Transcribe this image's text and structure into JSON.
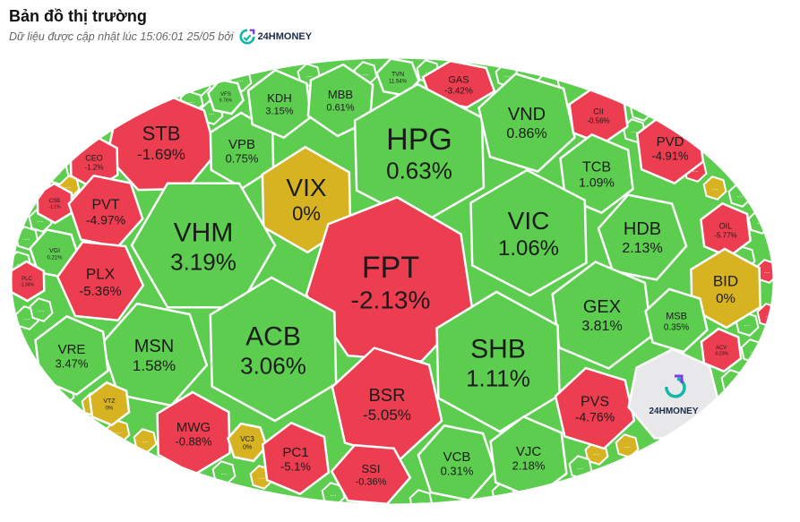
{
  "header": {
    "title": "Bản đồ thị trường",
    "subtitle": "Dữ liệu được cập nhật lúc 15:06:01 25/05 bởi",
    "brand": "24HMONEY"
  },
  "colors": {
    "up": "#5ccd4f",
    "down": "#ec3d51",
    "flat": "#d7b221",
    "brand_teal": "#14b8a6",
    "brand_purple": "#7c3aed",
    "border": "#ffffff"
  },
  "tiles": [
    {
      "ticker": "STB",
      "change": "-1.69%",
      "state": "down"
    },
    {
      "ticker": "VPB",
      "change": "0.75%",
      "state": "up"
    },
    {
      "ticker": "KDH",
      "change": "3.15%",
      "state": "up"
    },
    {
      "ticker": "MBB",
      "change": "0.61%",
      "state": "up"
    },
    {
      "ticker": "TVN",
      "change": "11.54%",
      "state": "up"
    },
    {
      "ticker": "GAS",
      "change": "-3.42%",
      "state": "down"
    },
    {
      "ticker": "VFS",
      "change": "6.76%",
      "state": "up"
    },
    {
      "ticker": "HPG",
      "change": "0.63%",
      "state": "up"
    },
    {
      "ticker": "VND",
      "change": "0.86%",
      "state": "up"
    },
    {
      "ticker": "CII",
      "change": "-0.56%",
      "state": "down"
    },
    {
      "ticker": "CEO",
      "change": "-1.2%",
      "state": "down"
    },
    {
      "ticker": "VIX",
      "change": "0%",
      "state": "flat"
    },
    {
      "ticker": "TCB",
      "change": "1.09%",
      "state": "up"
    },
    {
      "ticker": "PVD",
      "change": "-4.91%",
      "state": "down"
    },
    {
      "ticker": "CSB",
      "change": "-1.1%",
      "state": "down"
    },
    {
      "ticker": "PVT",
      "change": "-4.97%",
      "state": "down"
    },
    {
      "ticker": "VHM",
      "change": "3.19%",
      "state": "up"
    },
    {
      "ticker": "VIC",
      "change": "1.06%",
      "state": "up"
    },
    {
      "ticker": "HDB",
      "change": "2.13%",
      "state": "up"
    },
    {
      "ticker": "OIL",
      "change": "-5.77%",
      "state": "down"
    },
    {
      "ticker": "VGI",
      "change": "0.21%",
      "state": "up"
    },
    {
      "ticker": "FPT",
      "change": "-2.13%",
      "state": "down"
    },
    {
      "ticker": "PLX",
      "change": "-5.36%",
      "state": "down"
    },
    {
      "ticker": "BID",
      "change": "0%",
      "state": "flat"
    },
    {
      "ticker": "PLC",
      "change": "-1.36%",
      "state": "down"
    },
    {
      "ticker": "GEX",
      "change": "3.81%",
      "state": "up"
    },
    {
      "ticker": "MSB",
      "change": "0.35%",
      "state": "up"
    },
    {
      "ticker": "MSN",
      "change": "1.58%",
      "state": "up"
    },
    {
      "ticker": "ACB",
      "change": "3.06%",
      "state": "up"
    },
    {
      "ticker": "SHB",
      "change": "1.11%",
      "state": "up"
    },
    {
      "ticker": "VRE",
      "change": "3.47%",
      "state": "up"
    },
    {
      "ticker": "ACV",
      "change": "-0.23%",
      "state": "down"
    },
    {
      "ticker": "BSR",
      "change": "-5.05%",
      "state": "down"
    },
    {
      "ticker": "VTZ",
      "change": "0%",
      "state": "flat"
    },
    {
      "ticker": "PVS",
      "change": "-4.76%",
      "state": "down"
    },
    {
      "ticker": "MWG",
      "change": "-0.88%",
      "state": "down"
    },
    {
      "ticker": "VC3",
      "change": "0%",
      "state": "flat"
    },
    {
      "ticker": "PC1",
      "change": "-5.1%",
      "state": "down"
    },
    {
      "ticker": "VCB",
      "change": "0.31%",
      "state": "up"
    },
    {
      "ticker": "VJC",
      "change": "2.18%",
      "state": "up"
    },
    {
      "ticker": "SSI",
      "change": "-0.36%",
      "state": "down"
    }
  ],
  "small_tiles": [
    {
      "label": "...",
      "state": "up"
    },
    {
      "label": "...",
      "state": "down"
    },
    {
      "label": "...",
      "state": "flat"
    }
  ]
}
